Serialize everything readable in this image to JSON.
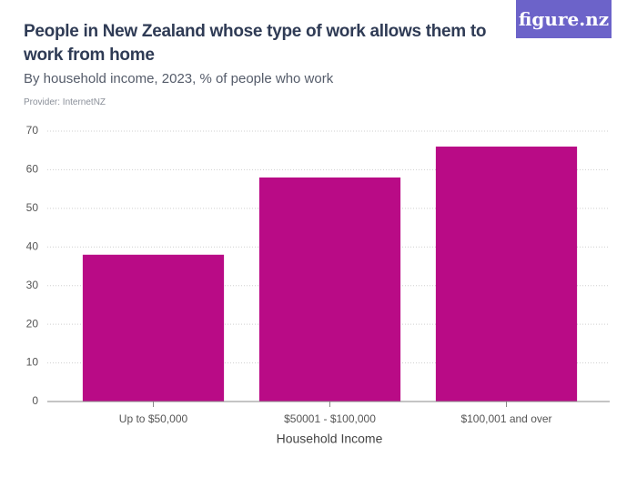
{
  "header": {
    "logo": "figure.nz"
  },
  "chart_data": {
    "type": "bar",
    "title": "People in New Zealand whose type of work allows them to work from home",
    "subtitle": "By household income, 2023, % of people who work",
    "provider": "Provider: InternetNZ",
    "x_label": "Household Income",
    "categories": [
      "Up to $50,000",
      "$50001 - $100,000",
      "$100,001 and over"
    ],
    "values": [
      38,
      58,
      66
    ],
    "color": "#b90b86",
    "ylim": [
      0,
      70
    ],
    "yticks": [
      0,
      10,
      20,
      30,
      40,
      50,
      60,
      70
    ],
    "grid": true
  }
}
